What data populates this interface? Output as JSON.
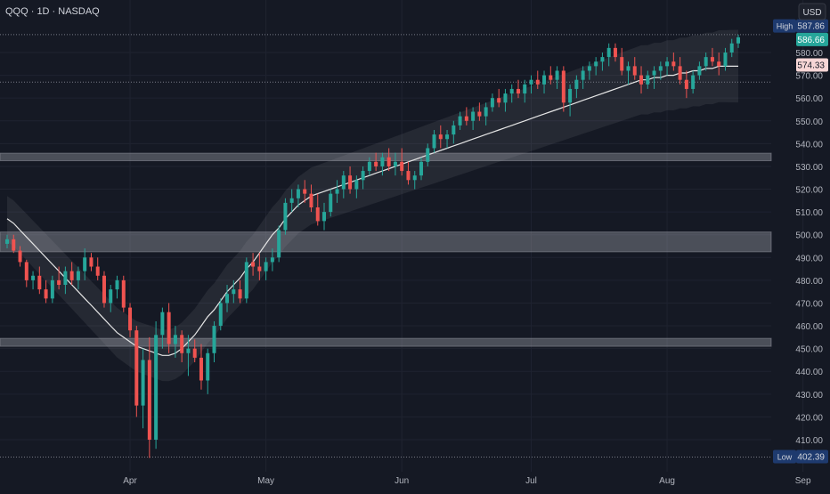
{
  "header": {
    "title": "QQQ · 1D · NASDAQ"
  },
  "chart_data": {
    "type": "candlestick",
    "symbol": "QQQ",
    "interval": "1D",
    "exchange": "NASDAQ",
    "currency": "USD",
    "ylim": [
      400,
      592
    ],
    "y_ticks": [
      410,
      420,
      430,
      440,
      450,
      460,
      470,
      480,
      490,
      500,
      510,
      520,
      530,
      540,
      550,
      560,
      570,
      580
    ],
    "x_ticks": [
      {
        "label": "Apr",
        "index": 19
      },
      {
        "label": "May",
        "index": 40
      },
      {
        "label": "Jun",
        "index": 61
      },
      {
        "label": "Jul",
        "index": 81
      },
      {
        "label": "Aug",
        "index": 102
      },
      {
        "label": "Sep",
        "index": 123
      }
    ],
    "price_labels": {
      "high": {
        "label": "High",
        "value": "587.86"
      },
      "last": {
        "value": "586.66"
      },
      "ma": {
        "value": "574.33"
      },
      "low": {
        "label": "Low",
        "value": "402.39"
      }
    },
    "reference_lines": [
      587.86,
      567.0,
      402.39
    ],
    "zones": [
      {
        "low": 532.5,
        "high": 535.8
      },
      {
        "low": 492.5,
        "high": 501.2
      },
      {
        "low": 451.0,
        "high": 454.5
      }
    ],
    "ma_series": [
      507,
      505,
      502,
      499,
      496,
      493,
      490,
      487,
      484,
      481,
      478,
      475,
      472,
      469,
      466,
      463,
      460,
      457,
      455,
      453,
      451,
      450,
      449,
      448,
      447,
      447,
      448,
      450,
      453,
      456,
      460,
      464,
      467,
      471,
      475,
      478,
      481,
      485,
      488,
      492,
      496,
      500,
      503,
      507,
      510,
      513,
      515,
      517,
      518,
      519,
      520,
      521,
      522,
      523,
      524,
      525,
      526,
      527,
      528,
      529,
      530,
      531,
      532,
      533,
      534,
      535,
      536,
      537,
      538,
      539,
      540,
      541,
      542,
      543,
      544,
      545,
      546,
      547,
      548,
      549,
      550,
      551,
      552,
      553,
      554,
      555,
      556,
      557,
      558,
      559,
      560,
      561,
      562,
      563,
      564,
      565,
      566,
      567,
      568,
      568,
      569,
      569,
      570,
      570,
      571,
      571,
      572,
      572,
      573,
      573,
      574,
      574,
      574,
      574
    ],
    "candles": [
      [
        496,
        500,
        494,
        498
      ],
      [
        498,
        500,
        492,
        493
      ],
      [
        493,
        495,
        486,
        488
      ],
      [
        488,
        489,
        477,
        480
      ],
      [
        480,
        484,
        476,
        482
      ],
      [
        482,
        486,
        474,
        476
      ],
      [
        476,
        480,
        470,
        472
      ],
      [
        472,
        482,
        470,
        480
      ],
      [
        480,
        486,
        476,
        478
      ],
      [
        478,
        486,
        474,
        484
      ],
      [
        484,
        488,
        478,
        480
      ],
      [
        480,
        486,
        476,
        484
      ],
      [
        484,
        494,
        480,
        490
      ],
      [
        490,
        492,
        484,
        486
      ],
      [
        486,
        490,
        480,
        482
      ],
      [
        482,
        484,
        468,
        470
      ],
      [
        470,
        478,
        466,
        476
      ],
      [
        476,
        482,
        472,
        480
      ],
      [
        480,
        482,
        466,
        468
      ],
      [
        468,
        470,
        455,
        458
      ],
      [
        458,
        460,
        420,
        425
      ],
      [
        425,
        450,
        415,
        445
      ],
      [
        445,
        455,
        402,
        410
      ],
      [
        410,
        462,
        406,
        456
      ],
      [
        456,
        468,
        450,
        466
      ],
      [
        466,
        470,
        448,
        452
      ],
      [
        452,
        460,
        446,
        456
      ],
      [
        456,
        458,
        444,
        448
      ],
      [
        448,
        456,
        438,
        450
      ],
      [
        450,
        454,
        444,
        446
      ],
      [
        446,
        452,
        432,
        436
      ],
      [
        436,
        450,
        430,
        448
      ],
      [
        448,
        462,
        444,
        460
      ],
      [
        460,
        472,
        458,
        470
      ],
      [
        470,
        478,
        466,
        474
      ],
      [
        474,
        480,
        470,
        476
      ],
      [
        476,
        480,
        470,
        472
      ],
      [
        472,
        490,
        470,
        488
      ],
      [
        488,
        492,
        482,
        486
      ],
      [
        486,
        492,
        480,
        484
      ],
      [
        484,
        490,
        480,
        488
      ],
      [
        488,
        494,
        484,
        490
      ],
      [
        490,
        504,
        488,
        502
      ],
      [
        502,
        516,
        500,
        514
      ],
      [
        514,
        520,
        510,
        516
      ],
      [
        516,
        522,
        512,
        520
      ],
      [
        520,
        524,
        514,
        518
      ],
      [
        518,
        522,
        510,
        512
      ],
      [
        512,
        518,
        504,
        506
      ],
      [
        506,
        514,
        502,
        510
      ],
      [
        510,
        520,
        508,
        518
      ],
      [
        518,
        524,
        514,
        520
      ],
      [
        520,
        528,
        516,
        526
      ],
      [
        526,
        530,
        518,
        520
      ],
      [
        520,
        526,
        516,
        524
      ],
      [
        524,
        530,
        520,
        528
      ],
      [
        528,
        534,
        526,
        532
      ],
      [
        532,
        536,
        528,
        530
      ],
      [
        530,
        536,
        526,
        534
      ],
      [
        534,
        538,
        528,
        530
      ],
      [
        530,
        536,
        526,
        532
      ],
      [
        532,
        538,
        526,
        528
      ],
      [
        528,
        532,
        522,
        524
      ],
      [
        524,
        528,
        520,
        526
      ],
      [
        526,
        534,
        524,
        532
      ],
      [
        532,
        540,
        530,
        538
      ],
      [
        538,
        546,
        536,
        544
      ],
      [
        544,
        548,
        538,
        542
      ],
      [
        542,
        546,
        538,
        544
      ],
      [
        544,
        550,
        540,
        548
      ],
      [
        548,
        554,
        546,
        552
      ],
      [
        552,
        556,
        548,
        550
      ],
      [
        550,
        556,
        546,
        554
      ],
      [
        554,
        558,
        550,
        552
      ],
      [
        552,
        558,
        548,
        556
      ],
      [
        556,
        562,
        554,
        560
      ],
      [
        560,
        564,
        556,
        558
      ],
      [
        558,
        564,
        554,
        562
      ],
      [
        562,
        566,
        558,
        564
      ],
      [
        564,
        568,
        560,
        562
      ],
      [
        562,
        568,
        558,
        566
      ],
      [
        566,
        570,
        562,
        568
      ],
      [
        568,
        572,
        564,
        566
      ],
      [
        566,
        572,
        562,
        570
      ],
      [
        570,
        574,
        566,
        568
      ],
      [
        568,
        574,
        564,
        572
      ],
      [
        572,
        574,
        554,
        558
      ],
      [
        558,
        566,
        552,
        564
      ],
      [
        564,
        570,
        560,
        568
      ],
      [
        568,
        574,
        564,
        572
      ],
      [
        572,
        576,
        568,
        574
      ],
      [
        574,
        578,
        570,
        576
      ],
      [
        576,
        580,
        572,
        578
      ],
      [
        578,
        584,
        574,
        582
      ],
      [
        582,
        584,
        576,
        578
      ],
      [
        578,
        582,
        570,
        572
      ],
      [
        572,
        576,
        566,
        574
      ],
      [
        574,
        578,
        568,
        570
      ],
      [
        570,
        574,
        562,
        566
      ],
      [
        566,
        572,
        564,
        570
      ],
      [
        570,
        574,
        564,
        572
      ],
      [
        572,
        576,
        568,
        574
      ],
      [
        574,
        578,
        570,
        576
      ],
      [
        576,
        580,
        572,
        574
      ],
      [
        574,
        578,
        566,
        568
      ],
      [
        568,
        572,
        560,
        564
      ],
      [
        564,
        572,
        562,
        570
      ],
      [
        570,
        576,
        568,
        574
      ],
      [
        574,
        580,
        572,
        578
      ],
      [
        578,
        582,
        574,
        576
      ],
      [
        576,
        580,
        570,
        574
      ],
      [
        574,
        582,
        572,
        580
      ],
      [
        580,
        586,
        578,
        584
      ],
      [
        584,
        587.86,
        582,
        586.66
      ]
    ]
  }
}
